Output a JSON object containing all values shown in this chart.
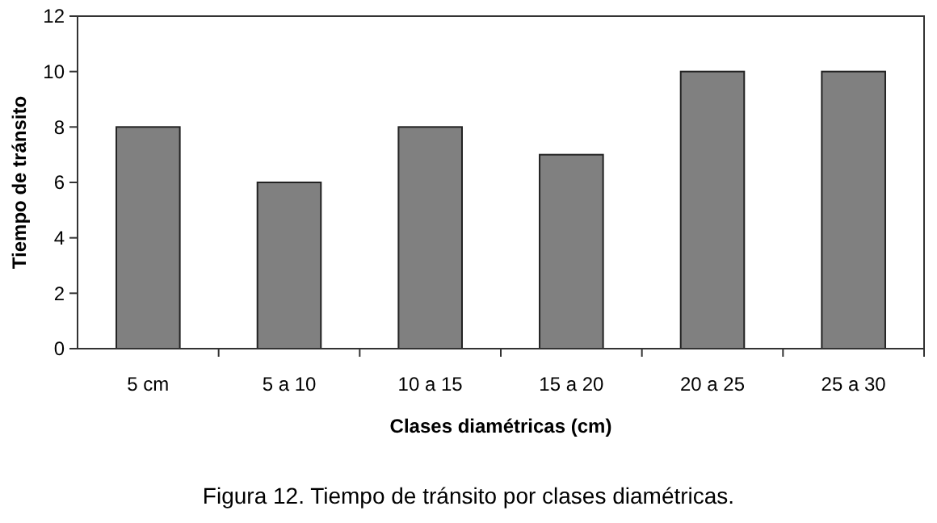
{
  "chart_data": {
    "type": "bar",
    "xlabel": "Clases diamétricas (cm)",
    "ylabel": "Tiempo de tránsito",
    "categories": [
      "5 cm",
      "5 a 10",
      "10 a 15",
      "15 a 20",
      "20 a 25",
      "25 a 30"
    ],
    "values": [
      8,
      6,
      8,
      7,
      10,
      10
    ],
    "color": "#808080",
    "ylim": [
      0,
      12
    ],
    "yticks": [
      0,
      2,
      4,
      6,
      8,
      10,
      12
    ],
    "grid": false,
    "annotations": [
      "Figura 12. Tiempo de tránsito por clases diamétricas."
    ]
  }
}
